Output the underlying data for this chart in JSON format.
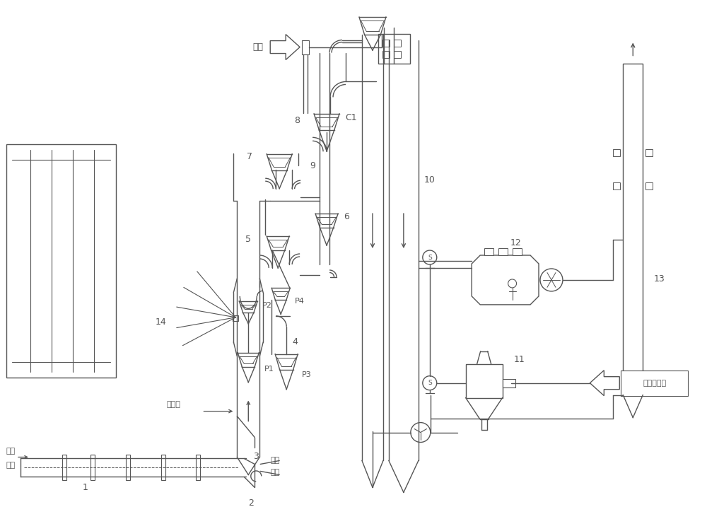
{
  "bg_color": "#ffffff",
  "lc": "#555555",
  "lw": 1.0,
  "fig_w": 10.0,
  "fig_h": 7.34,
  "labels": {
    "yuanliao": "原料",
    "sancifeng": "三次风",
    "meifen1": "煤粉",
    "meifeng1": "煤风",
    "meifen2": "煤粉",
    "meifeng2": "煤风",
    "yuanliao_hh": "原料混合物",
    "C1": "C1",
    "1": "1",
    "2": "2",
    "3": "3",
    "4": "4",
    "5": "5",
    "6": "6",
    "7": "7",
    "8": "8",
    "9": "9",
    "10": "10",
    "11": "11",
    "12": "12",
    "13": "13",
    "14": "14",
    "P1": "P1",
    "P2": "P2",
    "P3": "P3",
    "P4": "P4"
  }
}
